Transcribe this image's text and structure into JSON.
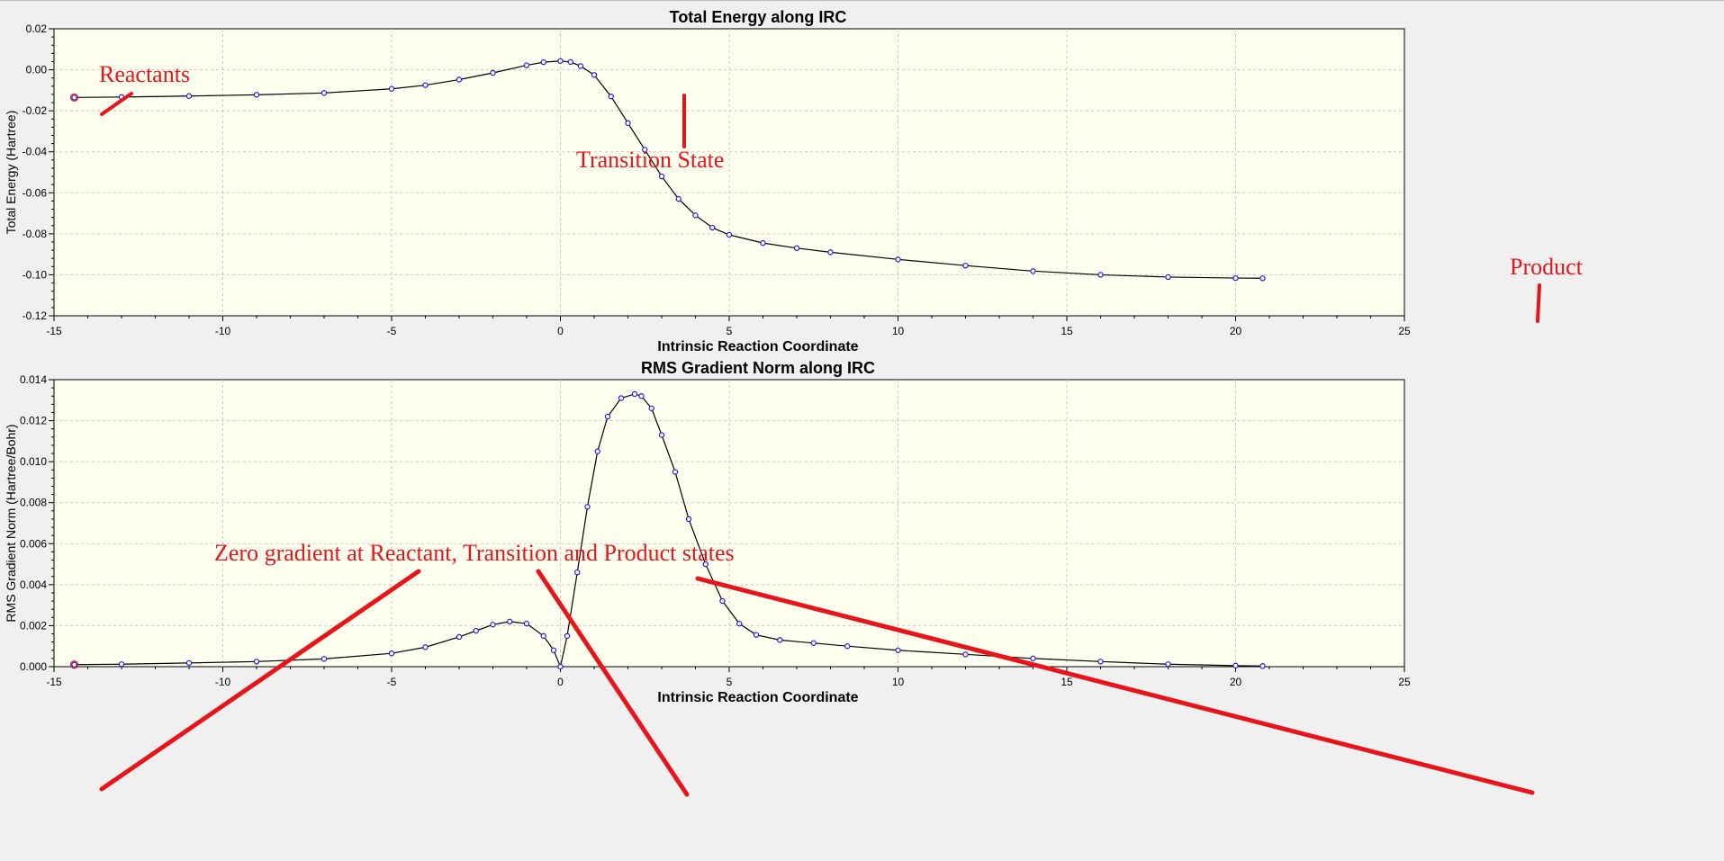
{
  "colors": {
    "plot_bg": "#ffffef",
    "grid": "#c8c8c8",
    "line": "#000000",
    "point": "#1e1ee6",
    "start_point": "#e8141b",
    "annotation": "#e8141b"
  },
  "chart_data": [
    {
      "type": "line",
      "title": "Total Energy along IRC",
      "xlabel": "Intrinsic Reaction Coordinate",
      "ylabel": "Total Energy (Hartree)",
      "xlim": [
        -15,
        25
      ],
      "ylim": [
        -0.12,
        0.02
      ],
      "xticks": [
        -15,
        -10,
        -5,
        0,
        5,
        10,
        15,
        20,
        25
      ],
      "yticks": [
        -0.12,
        -0.1,
        -0.08,
        -0.06,
        -0.04,
        -0.02,
        0.0,
        0.02
      ],
      "ytick_labels": [
        "-0.12",
        "-0.10",
        "-0.08",
        "-0.06",
        "-0.04",
        "-0.02",
        "0.00",
        "0.02"
      ],
      "xtick_labels": [
        "-15",
        "-10",
        "-5",
        "0",
        "5",
        "10",
        "15",
        "20",
        "25"
      ],
      "grid": true,
      "series": [
        {
          "name": "Total Energy",
          "x": [
            -14.4,
            -13,
            -11,
            -9,
            -7,
            -5,
            -4,
            -3,
            -2,
            -1,
            -0.5,
            0,
            0.3,
            0.6,
            1,
            1.5,
            2,
            2.5,
            3,
            3.5,
            4,
            4.5,
            5,
            6,
            7,
            8,
            10,
            12,
            14,
            16,
            18,
            20,
            20.8
          ],
          "y": [
            -0.0135,
            -0.0133,
            -0.0128,
            -0.0122,
            -0.0113,
            -0.0093,
            -0.0075,
            -0.0048,
            -0.0015,
            0.0022,
            0.0037,
            0.0043,
            0.0038,
            0.0018,
            -0.0025,
            -0.013,
            -0.026,
            -0.039,
            -0.052,
            -0.063,
            -0.071,
            -0.077,
            -0.0805,
            -0.0845,
            -0.087,
            -0.089,
            -0.0925,
            -0.0955,
            -0.0982,
            -0.1,
            -0.1011,
            -0.1016,
            -0.1017
          ]
        }
      ],
      "annotations": [
        {
          "label": "Reactants",
          "text": "Reactants"
        },
        {
          "label": "Transition State",
          "text": "Transition State"
        },
        {
          "label": "Product",
          "text": "Product"
        }
      ]
    },
    {
      "type": "line",
      "title": "RMS Gradient Norm along IRC",
      "xlabel": "Intrinsic Reaction Coordinate",
      "ylabel": "RMS Gradient Norm (Hartree/Bohr)",
      "xlim": [
        -15,
        25
      ],
      "ylim": [
        0,
        0.014
      ],
      "xticks": [
        -15,
        -10,
        -5,
        0,
        5,
        10,
        15,
        20,
        25
      ],
      "yticks": [
        0,
        0.002,
        0.004,
        0.006,
        0.008,
        0.01,
        0.012,
        0.014
      ],
      "ytick_labels": [
        "0.000",
        "0.002",
        "0.004",
        "0.006",
        "0.008",
        "0.010",
        "0.012",
        "0.014"
      ],
      "xtick_labels": [
        "-15",
        "-10",
        "-5",
        "0",
        "5",
        "10",
        "15",
        "20",
        "25"
      ],
      "grid": true,
      "series": [
        {
          "name": "RMS Gradient Norm",
          "x": [
            -14.4,
            -13,
            -11,
            -9,
            -7,
            -5,
            -4,
            -3,
            -2.5,
            -2,
            -1.5,
            -1,
            -0.5,
            -0.2,
            0,
            0.2,
            0.5,
            0.8,
            1.1,
            1.4,
            1.8,
            2.2,
            2.4,
            2.7,
            3,
            3.4,
            3.8,
            4.3,
            4.8,
            5.3,
            5.8,
            6.5,
            7.5,
            8.5,
            10,
            12,
            14,
            16,
            18,
            20,
            20.8
          ],
          "y": [
            0.0001,
            0.00012,
            0.00018,
            0.00025,
            0.00038,
            0.00065,
            0.00095,
            0.00145,
            0.00175,
            0.00205,
            0.0022,
            0.0021,
            0.0015,
            0.0008,
            0.0,
            0.0015,
            0.0046,
            0.0078,
            0.0105,
            0.0122,
            0.0131,
            0.0133,
            0.0132,
            0.0126,
            0.0113,
            0.0095,
            0.0072,
            0.005,
            0.0032,
            0.0021,
            0.00155,
            0.0013,
            0.00115,
            0.001,
            0.0008,
            0.0006,
            0.0004,
            0.00025,
            0.00012,
            5e-05,
            3e-05
          ]
        }
      ],
      "annotations": [
        {
          "label": "Zero gradient caption",
          "text": "Zero gradient at Reactant, Transition and Product states"
        }
      ]
    }
  ]
}
